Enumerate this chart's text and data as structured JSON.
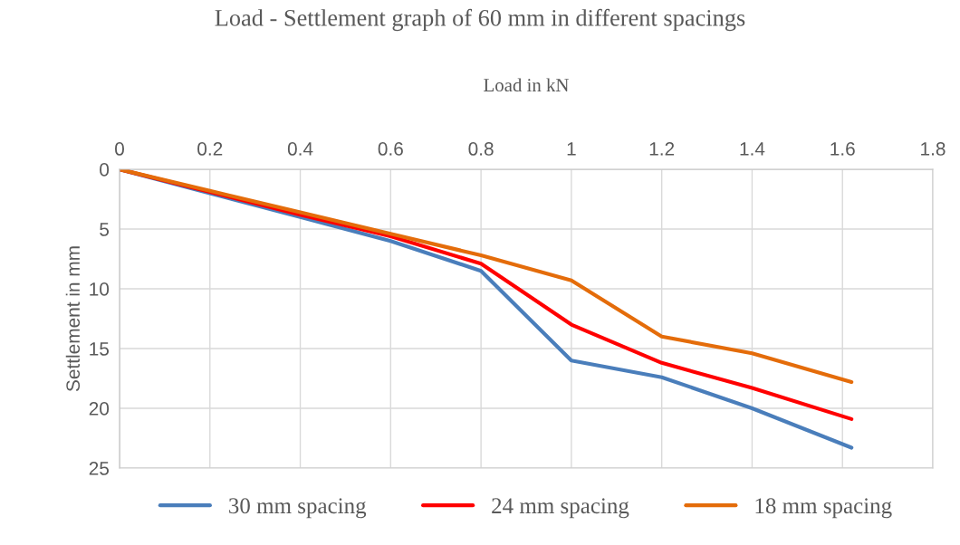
{
  "chart_data": {
    "type": "line",
    "title": "Load - Settlement graph of 60 mm in different spacings",
    "xlabel": "Load in kN",
    "ylabel": "Settlement in mm",
    "x": [
      0,
      0.2,
      0.4,
      0.6,
      0.8,
      1.0,
      1.2,
      1.4,
      1.62
    ],
    "series": [
      {
        "name": "30 mm spacing",
        "color": "#4a7ebb",
        "values": [
          0,
          2,
          4,
          6,
          8.5,
          16,
          17.4,
          20,
          23.3
        ]
      },
      {
        "name": "24 mm spacing",
        "color": "#ff0000",
        "values": [
          0,
          1.9,
          3.8,
          5.6,
          7.9,
          13,
          16.2,
          18.3,
          20.9
        ]
      },
      {
        "name": "18 mm spacing",
        "color": "#e46c0a",
        "values": [
          0,
          1.8,
          3.6,
          5.4,
          7.2,
          9.3,
          14,
          15.4,
          17.8
        ]
      }
    ],
    "xlim": [
      0,
      1.8
    ],
    "xticks": [
      0,
      0.2,
      0.4,
      0.6,
      0.8,
      1,
      1.2,
      1.4,
      1.6,
      1.8
    ],
    "ylim": [
      25,
      0
    ],
    "yticks": [
      0,
      5,
      10,
      15,
      20,
      25
    ],
    "grid": true,
    "legend": "bottom",
    "marker": "none",
    "line_style": "solid"
  }
}
